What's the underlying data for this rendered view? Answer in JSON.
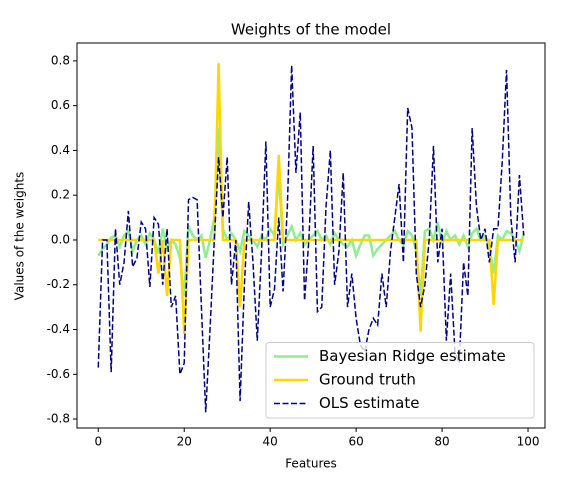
{
  "chart_data": {
    "type": "line",
    "title": "Weights of the model",
    "xlabel": "Features",
    "ylabel": "Values of the weights",
    "x": [
      0,
      1,
      2,
      3,
      4,
      5,
      6,
      7,
      8,
      9,
      10,
      11,
      12,
      13,
      14,
      15,
      16,
      17,
      18,
      19,
      20,
      21,
      22,
      23,
      24,
      25,
      26,
      27,
      28,
      29,
      30,
      31,
      32,
      33,
      34,
      35,
      36,
      37,
      38,
      39,
      40,
      41,
      42,
      43,
      44,
      45,
      46,
      47,
      48,
      49,
      50,
      51,
      52,
      53,
      54,
      55,
      56,
      57,
      58,
      59,
      60,
      61,
      62,
      63,
      64,
      65,
      66,
      67,
      68,
      69,
      70,
      71,
      72,
      73,
      74,
      75,
      76,
      77,
      78,
      79,
      80,
      81,
      82,
      83,
      84,
      85,
      86,
      87,
      88,
      89,
      90,
      91,
      92,
      93,
      94,
      95,
      96,
      97,
      98,
      99
    ],
    "series": [
      {
        "name": "Bayesian Ridge estimate",
        "color": "#90ee90",
        "style": "solid",
        "width": 2.5,
        "values": [
          -0.07,
          -0.04,
          -0.02,
          0.01,
          0.02,
          -0.03,
          0.02,
          0.04,
          -0.05,
          0.0,
          0.02,
          -0.02,
          0.03,
          0.0,
          -0.06,
          0.05,
          -0.04,
          0.0,
          -0.02,
          -0.08,
          -0.25,
          0.06,
          0.02,
          0.0,
          0.02,
          -0.08,
          0.0,
          0.1,
          0.5,
          0.05,
          0.0,
          0.03,
          0.0,
          -0.05,
          0.04,
          0.02,
          0.0,
          -0.03,
          0.02,
          0.0,
          0.05,
          0.02,
          0.3,
          -0.02,
          0.02,
          0.06,
          0.0,
          0.03,
          -0.02,
          0.0,
          0.02,
          0.04,
          0.0,
          0.02,
          -0.02,
          0.03,
          0.0,
          -0.02,
          -0.03,
          0.0,
          -0.07,
          -0.02,
          0.02,
          0.02,
          -0.07,
          -0.04,
          -0.02,
          0.0,
          0.02,
          0.04,
          0.0,
          -0.02,
          0.04,
          0.02,
          -0.05,
          -0.25,
          0.04,
          0.05,
          0.0,
          0.08,
          -0.02,
          0.04,
          0.0,
          0.02,
          -0.02,
          0.02,
          -0.03,
          0.03,
          0.05,
          0.0,
          0.02,
          -0.03,
          -0.15,
          0.02,
          0.0,
          0.04,
          0.03,
          0.0,
          -0.05,
          0.03
        ]
      },
      {
        "name": "Ground truth",
        "color": "#ffd700",
        "style": "solid",
        "width": 2.5,
        "values": [
          0,
          0,
          0,
          0,
          0,
          0,
          0,
          0,
          0,
          0,
          0,
          0,
          0,
          0,
          -0.15,
          0,
          -0.25,
          0,
          0,
          0,
          -0.42,
          0,
          0,
          0,
          0,
          0,
          0,
          0,
          0.79,
          0,
          0,
          0,
          0,
          -0.3,
          0,
          0,
          0,
          0,
          0,
          0,
          0,
          0,
          0.38,
          0,
          0,
          0,
          0,
          0,
          0,
          0,
          0,
          0,
          0,
          0,
          0,
          0,
          0,
          0,
          0,
          0,
          0,
          0,
          0,
          0,
          0,
          0,
          0,
          0,
          0,
          0,
          0,
          0,
          0,
          0,
          0,
          -0.41,
          0,
          0,
          0,
          0,
          0,
          0,
          0,
          0,
          0,
          0,
          0,
          0,
          0,
          0,
          0,
          0,
          -0.29,
          0,
          0,
          0,
          0,
          0,
          0,
          0
        ]
      },
      {
        "name": "OLS estimate",
        "color": "#000080",
        "style": "dashed",
        "width": 1.5,
        "values": [
          -0.57,
          0.0,
          0.0,
          -0.59,
          0.05,
          -0.2,
          -0.1,
          0.13,
          -0.12,
          -0.08,
          0.08,
          0.05,
          -0.21,
          0.1,
          0.07,
          -0.2,
          0.05,
          -0.3,
          -0.25,
          -0.6,
          -0.55,
          0.18,
          0.19,
          0.18,
          -0.3,
          -0.77,
          -0.4,
          0.0,
          0.37,
          0.1,
          0.37,
          -0.2,
          0.0,
          -0.72,
          -0.2,
          0.17,
          -0.1,
          -0.45,
          -0.05,
          0.44,
          -0.3,
          -0.22,
          0.1,
          -0.23,
          0.15,
          0.78,
          0.3,
          0.57,
          -0.27,
          0.0,
          0.42,
          -0.32,
          -0.3,
          0.15,
          0.4,
          -0.2,
          -0.05,
          0.3,
          -0.3,
          -0.15,
          -0.35,
          -0.47,
          -0.5,
          -0.4,
          -0.35,
          -0.38,
          -0.15,
          -0.3,
          -0.05,
          0.1,
          0.25,
          -0.1,
          0.59,
          0.5,
          -0.15,
          -0.3,
          -0.2,
          0.0,
          0.42,
          -0.1,
          0.05,
          -0.45,
          -0.15,
          -0.5,
          -0.55,
          -0.1,
          -0.25,
          0.5,
          0.15,
          0.0,
          0.05,
          -0.1,
          0.05,
          0.05,
          0.35,
          0.76,
          0.1,
          -0.1,
          0.29,
          0.02
        ]
      }
    ],
    "xlim": [
      -4.95,
      103.95
    ],
    "ylim": [
      -0.84,
      0.88
    ],
    "xticks": [
      0,
      20,
      40,
      60,
      80,
      100
    ],
    "yticks": [
      -0.8,
      -0.6,
      -0.4,
      -0.2,
      {
        "value": 0,
        "label": "0.0"
      },
      0.2,
      0.4,
      0.6,
      0.8
    ],
    "legend": "lower right"
  }
}
